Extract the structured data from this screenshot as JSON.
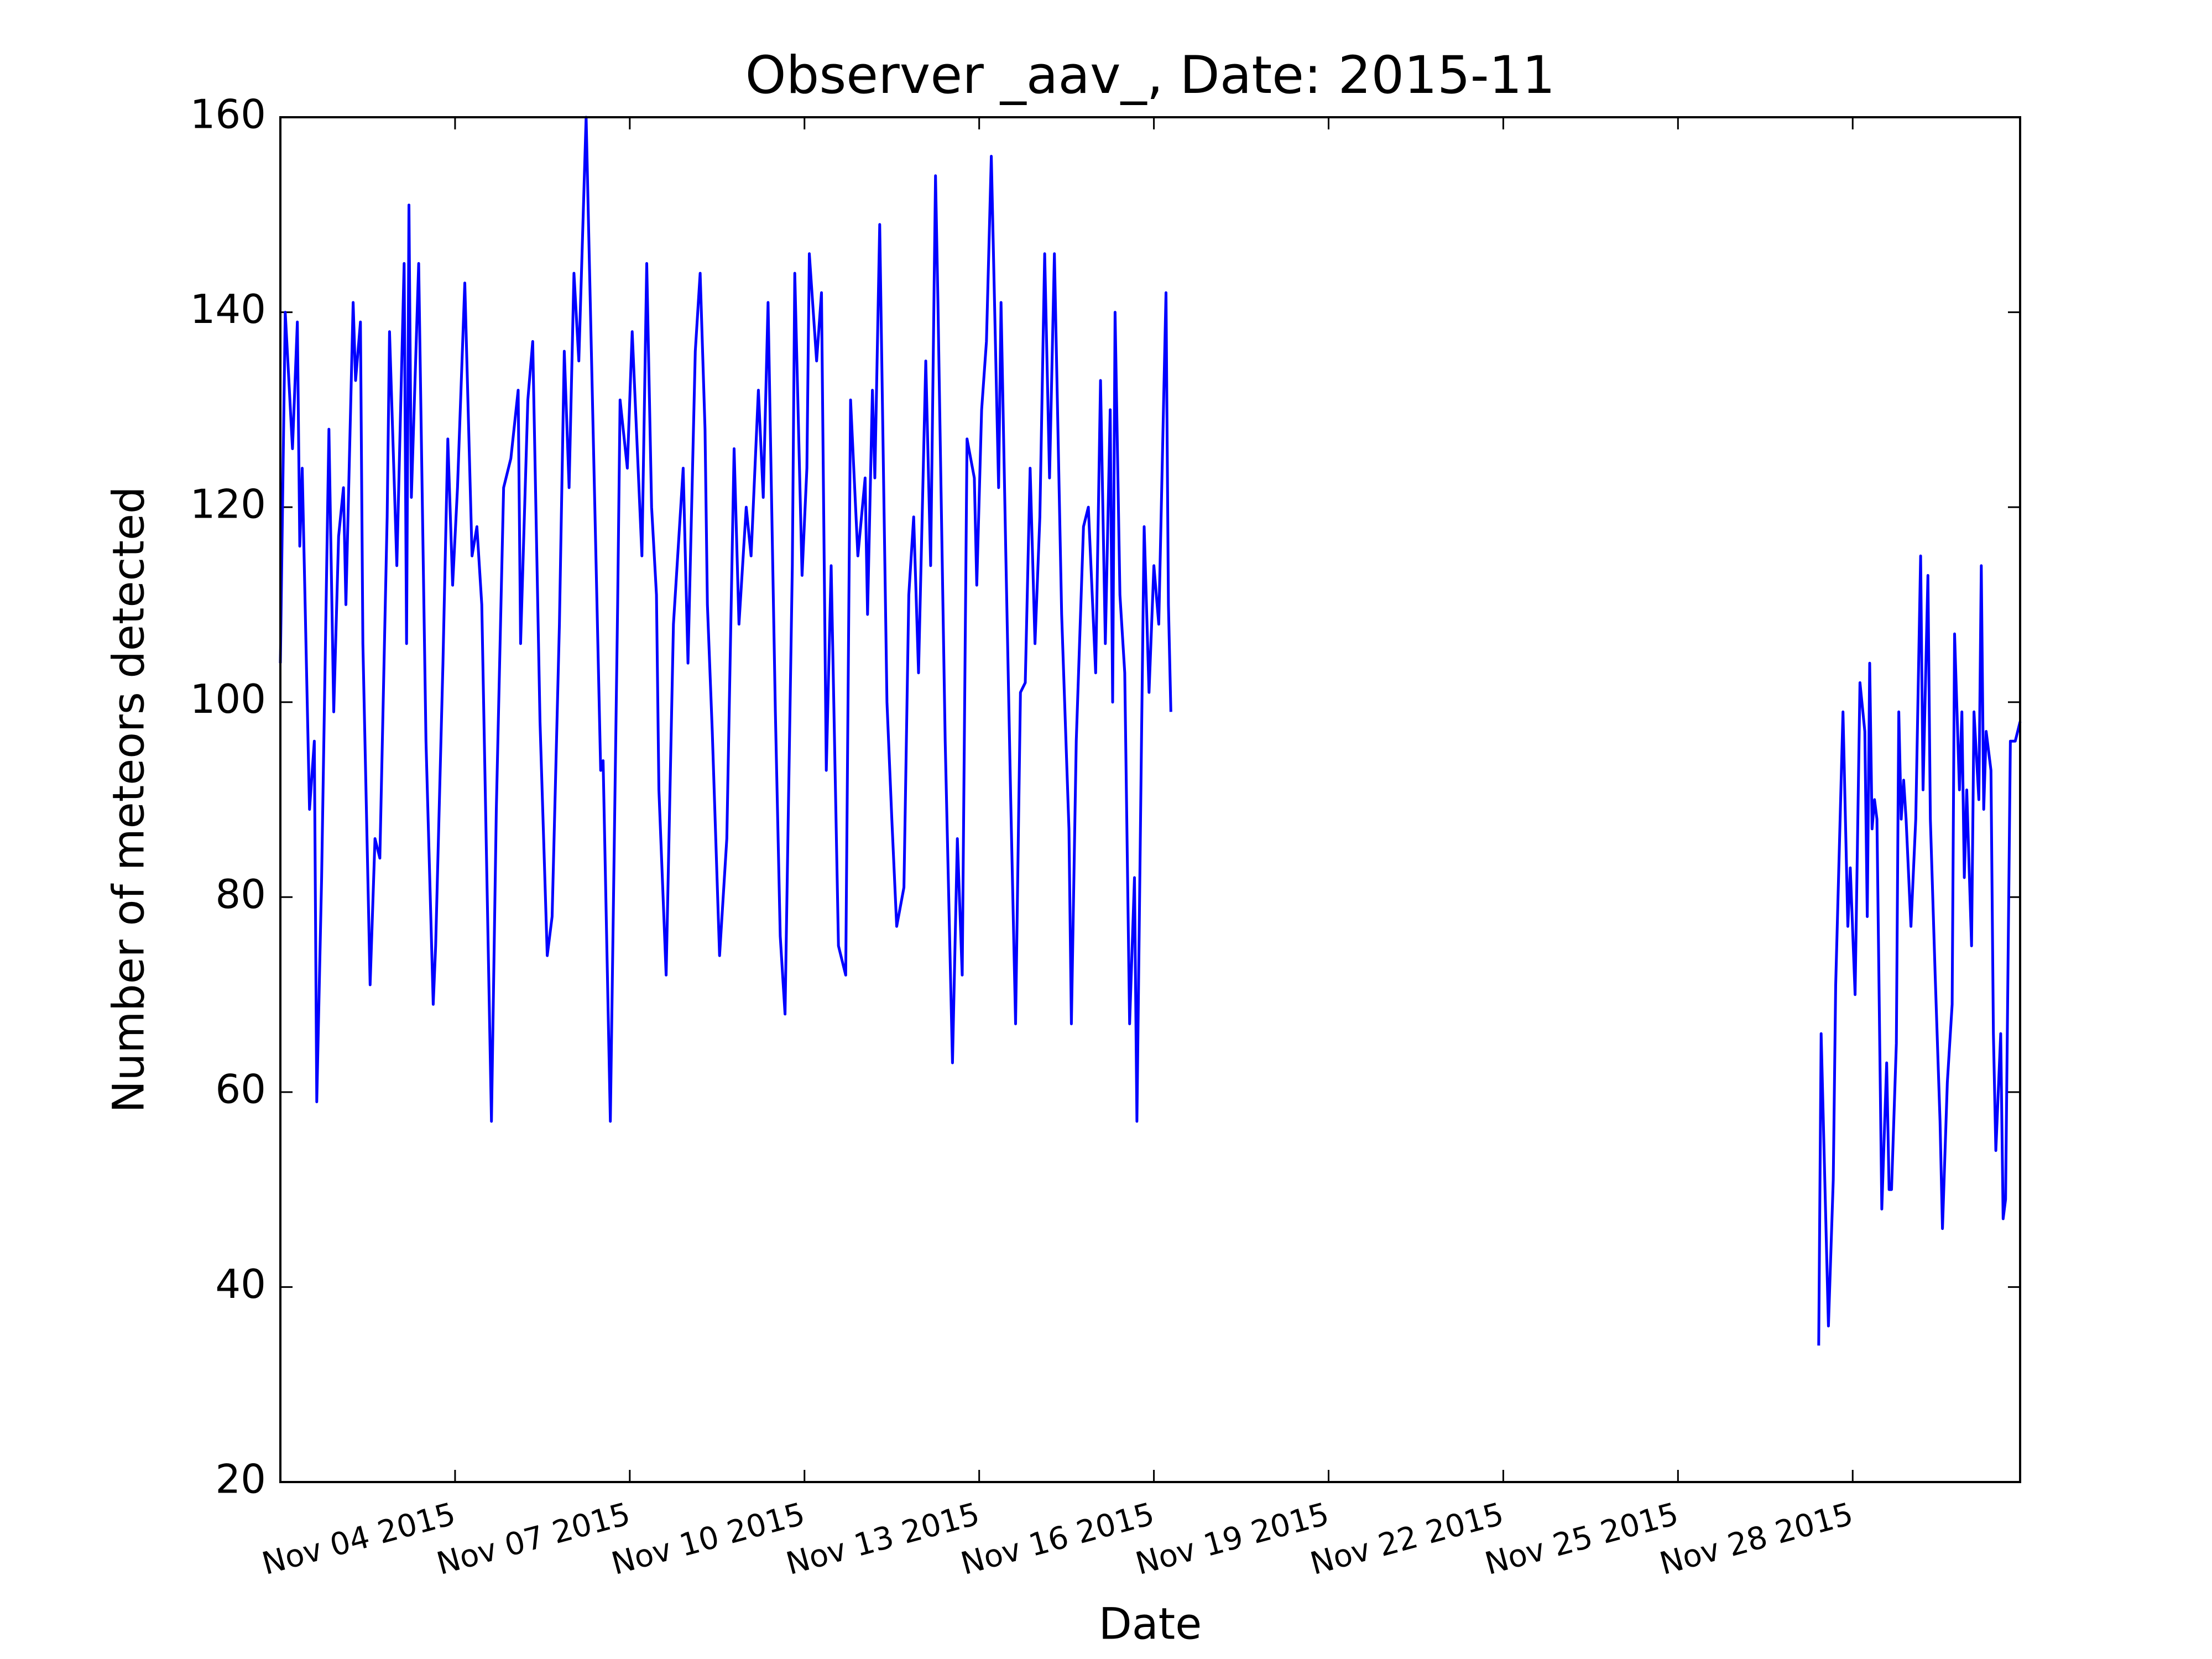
{
  "chart_data": {
    "type": "line",
    "title": "Observer _aav_, Date: 2015-11",
    "x_label": "Date",
    "y_label": "Number of meteors detected",
    "color": "#0000ff",
    "x": [
      "2015-11-01T00:00",
      "2015-11-01T02:00",
      "2015-11-01T05:00",
      "2015-11-01T07:00",
      "2015-11-01T08:00",
      "2015-11-01T09:00",
      "2015-11-01T12:00",
      "2015-11-01T14:00",
      "2015-11-01T15:00",
      "2015-11-01T17:00",
      "2015-11-01T20:00",
      "2015-11-01T22:00",
      "2015-11-02T00:00",
      "2015-11-02T02:00",
      "2015-11-02T03:00",
      "2015-11-02T06:00",
      "2015-11-02T07:00",
      "2015-11-02T09:00",
      "2015-11-02T10:00",
      "2015-11-02T13:00",
      "2015-11-02T15:00",
      "2015-11-02T17:00",
      "2015-11-02T20:00",
      "2015-11-02T21:00",
      "2015-11-03T00:00",
      "2015-11-03T03:00",
      "2015-11-03T04:00",
      "2015-11-03T05:00",
      "2015-11-03T06:00",
      "2015-11-03T09:00",
      "2015-11-03T12:00",
      "2015-11-03T15:00",
      "2015-11-03T16:00",
      "2015-11-03T19:00",
      "2015-11-03T21:00",
      "2015-11-03T23:00",
      "2015-11-04T01:00",
      "2015-11-04T04:00",
      "2015-11-04T07:00",
      "2015-11-04T09:00",
      "2015-11-04T11:00",
      "2015-11-04T15:00",
      "2015-11-04T17:00",
      "2015-11-04T20:00",
      "2015-11-04T23:00",
      "2015-11-05T02:00",
      "2015-11-05T03:00",
      "2015-11-05T06:00",
      "2015-11-05T08:00",
      "2015-11-05T11:00",
      "2015-11-05T14:00",
      "2015-11-05T16:00",
      "2015-11-05T19:00",
      "2015-11-05T21:00",
      "2015-11-05T23:00",
      "2015-11-06T01:00",
      "2015-11-06T03:00",
      "2015-11-06T06:00",
      "2015-11-06T08:00",
      "2015-11-06T12:00",
      "2015-11-06T13:00",
      "2015-11-06T16:00",
      "2015-11-06T19:00",
      "2015-11-06T20:00",
      "2015-11-06T23:00",
      "2015-11-07T01:00",
      "2015-11-07T05:00",
      "2015-11-07T07:00",
      "2015-11-07T09:00",
      "2015-11-07T11:00",
      "2015-11-07T12:00",
      "2015-11-07T15:00",
      "2015-11-07T18:00",
      "2015-11-07T22:00",
      "2015-11-08T00:00",
      "2015-11-08T03:00",
      "2015-11-08T05:00",
      "2015-11-08T07:00",
      "2015-11-08T08:00",
      "2015-11-08T10:00",
      "2015-11-08T13:00",
      "2015-11-08T16:00",
      "2015-11-08T19:00",
      "2015-11-08T21:00",
      "2015-11-09T00:00",
      "2015-11-09T02:00",
      "2015-11-09T05:00",
      "2015-11-09T07:00",
      "2015-11-09T09:00",
      "2015-11-09T12:00",
      "2015-11-09T14:00",
      "2015-11-09T16:00",
      "2015-11-09T19:00",
      "2015-11-09T20:00",
      "2015-11-09T23:00",
      "2015-11-10T01:00",
      "2015-11-10T02:00",
      "2015-11-10T05:00",
      "2015-11-10T07:00",
      "2015-11-10T09:00",
      "2015-11-10T11:00",
      "2015-11-10T14:00",
      "2015-11-10T17:00",
      "2015-11-10T19:00",
      "2015-11-10T22:00",
      "2015-11-11T01:00",
      "2015-11-11T02:00",
      "2015-11-11T04:00",
      "2015-11-11T05:00",
      "2015-11-11T07:00",
      "2015-11-11T10:00",
      "2015-11-11T12:00",
      "2015-11-11T14:00",
      "2015-11-11T17:00",
      "2015-11-11T19:00",
      "2015-11-11T21:00",
      "2015-11-11T23:00",
      "2015-11-12T02:00",
      "2015-11-12T04:00",
      "2015-11-12T06:00",
      "2015-11-12T07:00",
      "2015-11-12T10:00",
      "2015-11-12T13:00",
      "2015-11-12T15:00",
      "2015-11-12T17:00",
      "2015-11-12T19:00",
      "2015-11-12T22:00",
      "2015-11-12T23:00",
      "2015-11-13T01:00",
      "2015-11-13T03:00",
      "2015-11-13T05:00",
      "2015-11-13T08:00",
      "2015-11-13T09:00",
      "2015-11-13T11:00",
      "2015-11-13T13:00",
      "2015-11-13T15:00",
      "2015-11-13T17:00",
      "2015-11-13T19:00",
      "2015-11-13T21:00",
      "2015-11-13T23:00",
      "2015-11-14T01:00",
      "2015-11-14T03:00",
      "2015-11-14T05:00",
      "2015-11-14T07:00",
      "2015-11-14T10:00",
      "2015-11-14T13:00",
      "2015-11-14T14:00",
      "2015-11-14T16:00",
      "2015-11-14T19:00",
      "2015-11-14T21:00",
      "2015-11-15T00:00",
      "2015-11-15T02:00",
      "2015-11-15T04:00",
      "2015-11-15T06:00",
      "2015-11-15T07:00",
      "2015-11-15T08:00",
      "2015-11-15T10:00",
      "2015-11-15T12:00",
      "2015-11-15T14:00",
      "2015-11-15T16:00",
      "2015-11-15T17:00",
      "2015-11-15T19:00",
      "2015-11-15T20:00",
      "2015-11-15T22:00",
      "2015-11-16T00:00",
      "2015-11-16T02:00",
      "2015-11-16T05:00",
      "2015-11-16T06:00",
      "2015-11-16T07:00",
      "2015-11-16T08:00",
      "2015-11-27T10:00",
      "2015-11-27T11:00",
      "2015-11-27T14:00",
      "2015-11-27T16:00",
      "2015-11-27T17:00",
      "2015-11-27T20:00",
      "2015-11-27T22:00",
      "2015-11-27T23:00",
      "2015-11-28T01:00",
      "2015-11-28T03:00",
      "2015-11-28T05:00",
      "2015-11-28T06:00",
      "2015-11-28T07:00",
      "2015-11-28T08:00",
      "2015-11-28T09:00",
      "2015-11-28T10:00",
      "2015-11-28T12:00",
      "2015-11-28T14:00",
      "2015-11-28T15:00",
      "2015-11-28T16:00",
      "2015-11-28T18:00",
      "2015-11-28T19:00",
      "2015-11-28T20:00",
      "2015-11-28T21:00",
      "2015-11-28T22:00",
      "2015-11-29T00:00",
      "2015-11-29T02:00",
      "2015-11-29T04:00",
      "2015-11-29T05:00",
      "2015-11-29T07:00",
      "2015-11-29T08:00",
      "2015-11-29T10:00",
      "2015-11-29T12:00",
      "2015-11-29T13:00",
      "2015-11-29T15:00",
      "2015-11-29T17:00",
      "2015-11-29T18:00",
      "2015-11-29T20:00",
      "2015-11-29T21:00",
      "2015-11-29T22:00",
      "2015-11-29T23:00",
      "2015-11-30T01:00",
      "2015-11-30T02:00",
      "2015-11-30T04:00",
      "2015-11-30T05:00",
      "2015-11-30T06:00",
      "2015-11-30T07:00",
      "2015-11-30T09:00",
      "2015-11-30T10:00",
      "2015-11-30T11:00",
      "2015-11-30T13:00",
      "2015-11-30T14:00",
      "2015-11-30T15:00",
      "2015-11-30T17:00",
      "2015-11-30T19:00",
      "2015-11-30T21:00"
    ],
    "values": [
      104,
      140,
      126,
      139,
      116,
      124,
      89,
      96,
      59,
      82,
      128,
      99,
      117,
      122,
      110,
      141,
      133,
      139,
      106,
      71,
      86,
      84,
      119,
      138,
      114,
      145,
      106,
      151,
      121,
      145,
      96,
      69,
      75,
      104,
      127,
      112,
      122,
      143,
      115,
      118,
      110,
      57,
      89,
      122,
      125,
      132,
      106,
      131,
      137,
      98,
      74,
      78,
      108,
      136,
      122,
      144,
      135,
      160,
      138,
      93,
      94,
      57,
      110,
      131,
      124,
      138,
      115,
      145,
      120,
      111,
      91,
      72,
      108,
      124,
      104,
      136,
      144,
      128,
      110,
      97,
      74,
      86,
      126,
      108,
      120,
      115,
      132,
      121,
      141,
      99,
      76,
      68,
      114,
      144,
      113,
      124,
      146,
      135,
      142,
      93,
      114,
      75,
      72,
      131,
      115,
      123,
      109,
      132,
      123,
      149,
      100,
      88,
      77,
      81,
      111,
      119,
      103,
      135,
      114,
      154,
      141,
      96,
      63,
      86,
      72,
      127,
      123,
      112,
      130,
      137,
      156,
      122,
      141,
      115,
      90,
      67,
      101,
      102,
      124,
      106,
      119,
      146,
      123,
      146,
      109,
      87,
      67,
      96,
      118,
      120,
      103,
      133,
      106,
      130,
      100,
      140,
      111,
      103,
      67,
      82,
      57,
      98,
      118,
      101,
      114,
      108,
      142,
      110,
      99,
      null,
      34,
      66,
      36,
      51,
      71,
      99,
      77,
      83,
      70,
      102,
      97,
      78,
      104,
      87,
      90,
      88,
      48,
      63,
      50,
      50,
      65,
      99,
      88,
      92,
      88,
      77,
      88,
      115,
      91,
      113,
      88,
      72,
      57,
      46,
      61,
      69,
      107,
      91,
      99,
      82,
      91,
      75,
      99,
      90,
      114,
      89,
      97,
      93,
      66,
      54,
      66,
      47,
      49,
      96,
      96,
      98
    ],
    "xlim": [
      "2015-11-01T00:00",
      "2015-11-30T21:00"
    ],
    "xticks": [
      {
        "value": "2015-11-04",
        "label": "Nov 04 2015"
      },
      {
        "value": "2015-11-07",
        "label": "Nov 07 2015"
      },
      {
        "value": "2015-11-10",
        "label": "Nov 10 2015"
      },
      {
        "value": "2015-11-13",
        "label": "Nov 13 2015"
      },
      {
        "value": "2015-11-16",
        "label": "Nov 16 2015"
      },
      {
        "value": "2015-11-19",
        "label": "Nov 19 2015"
      },
      {
        "value": "2015-11-22",
        "label": "Nov 22 2015"
      },
      {
        "value": "2015-11-25",
        "label": "Nov 25 2015"
      },
      {
        "value": "2015-11-28",
        "label": "Nov 28 2015"
      }
    ],
    "ylim": [
      20,
      160
    ],
    "yticks": [
      20,
      40,
      60,
      80,
      100,
      120,
      140,
      160
    ],
    "grid": false
  }
}
